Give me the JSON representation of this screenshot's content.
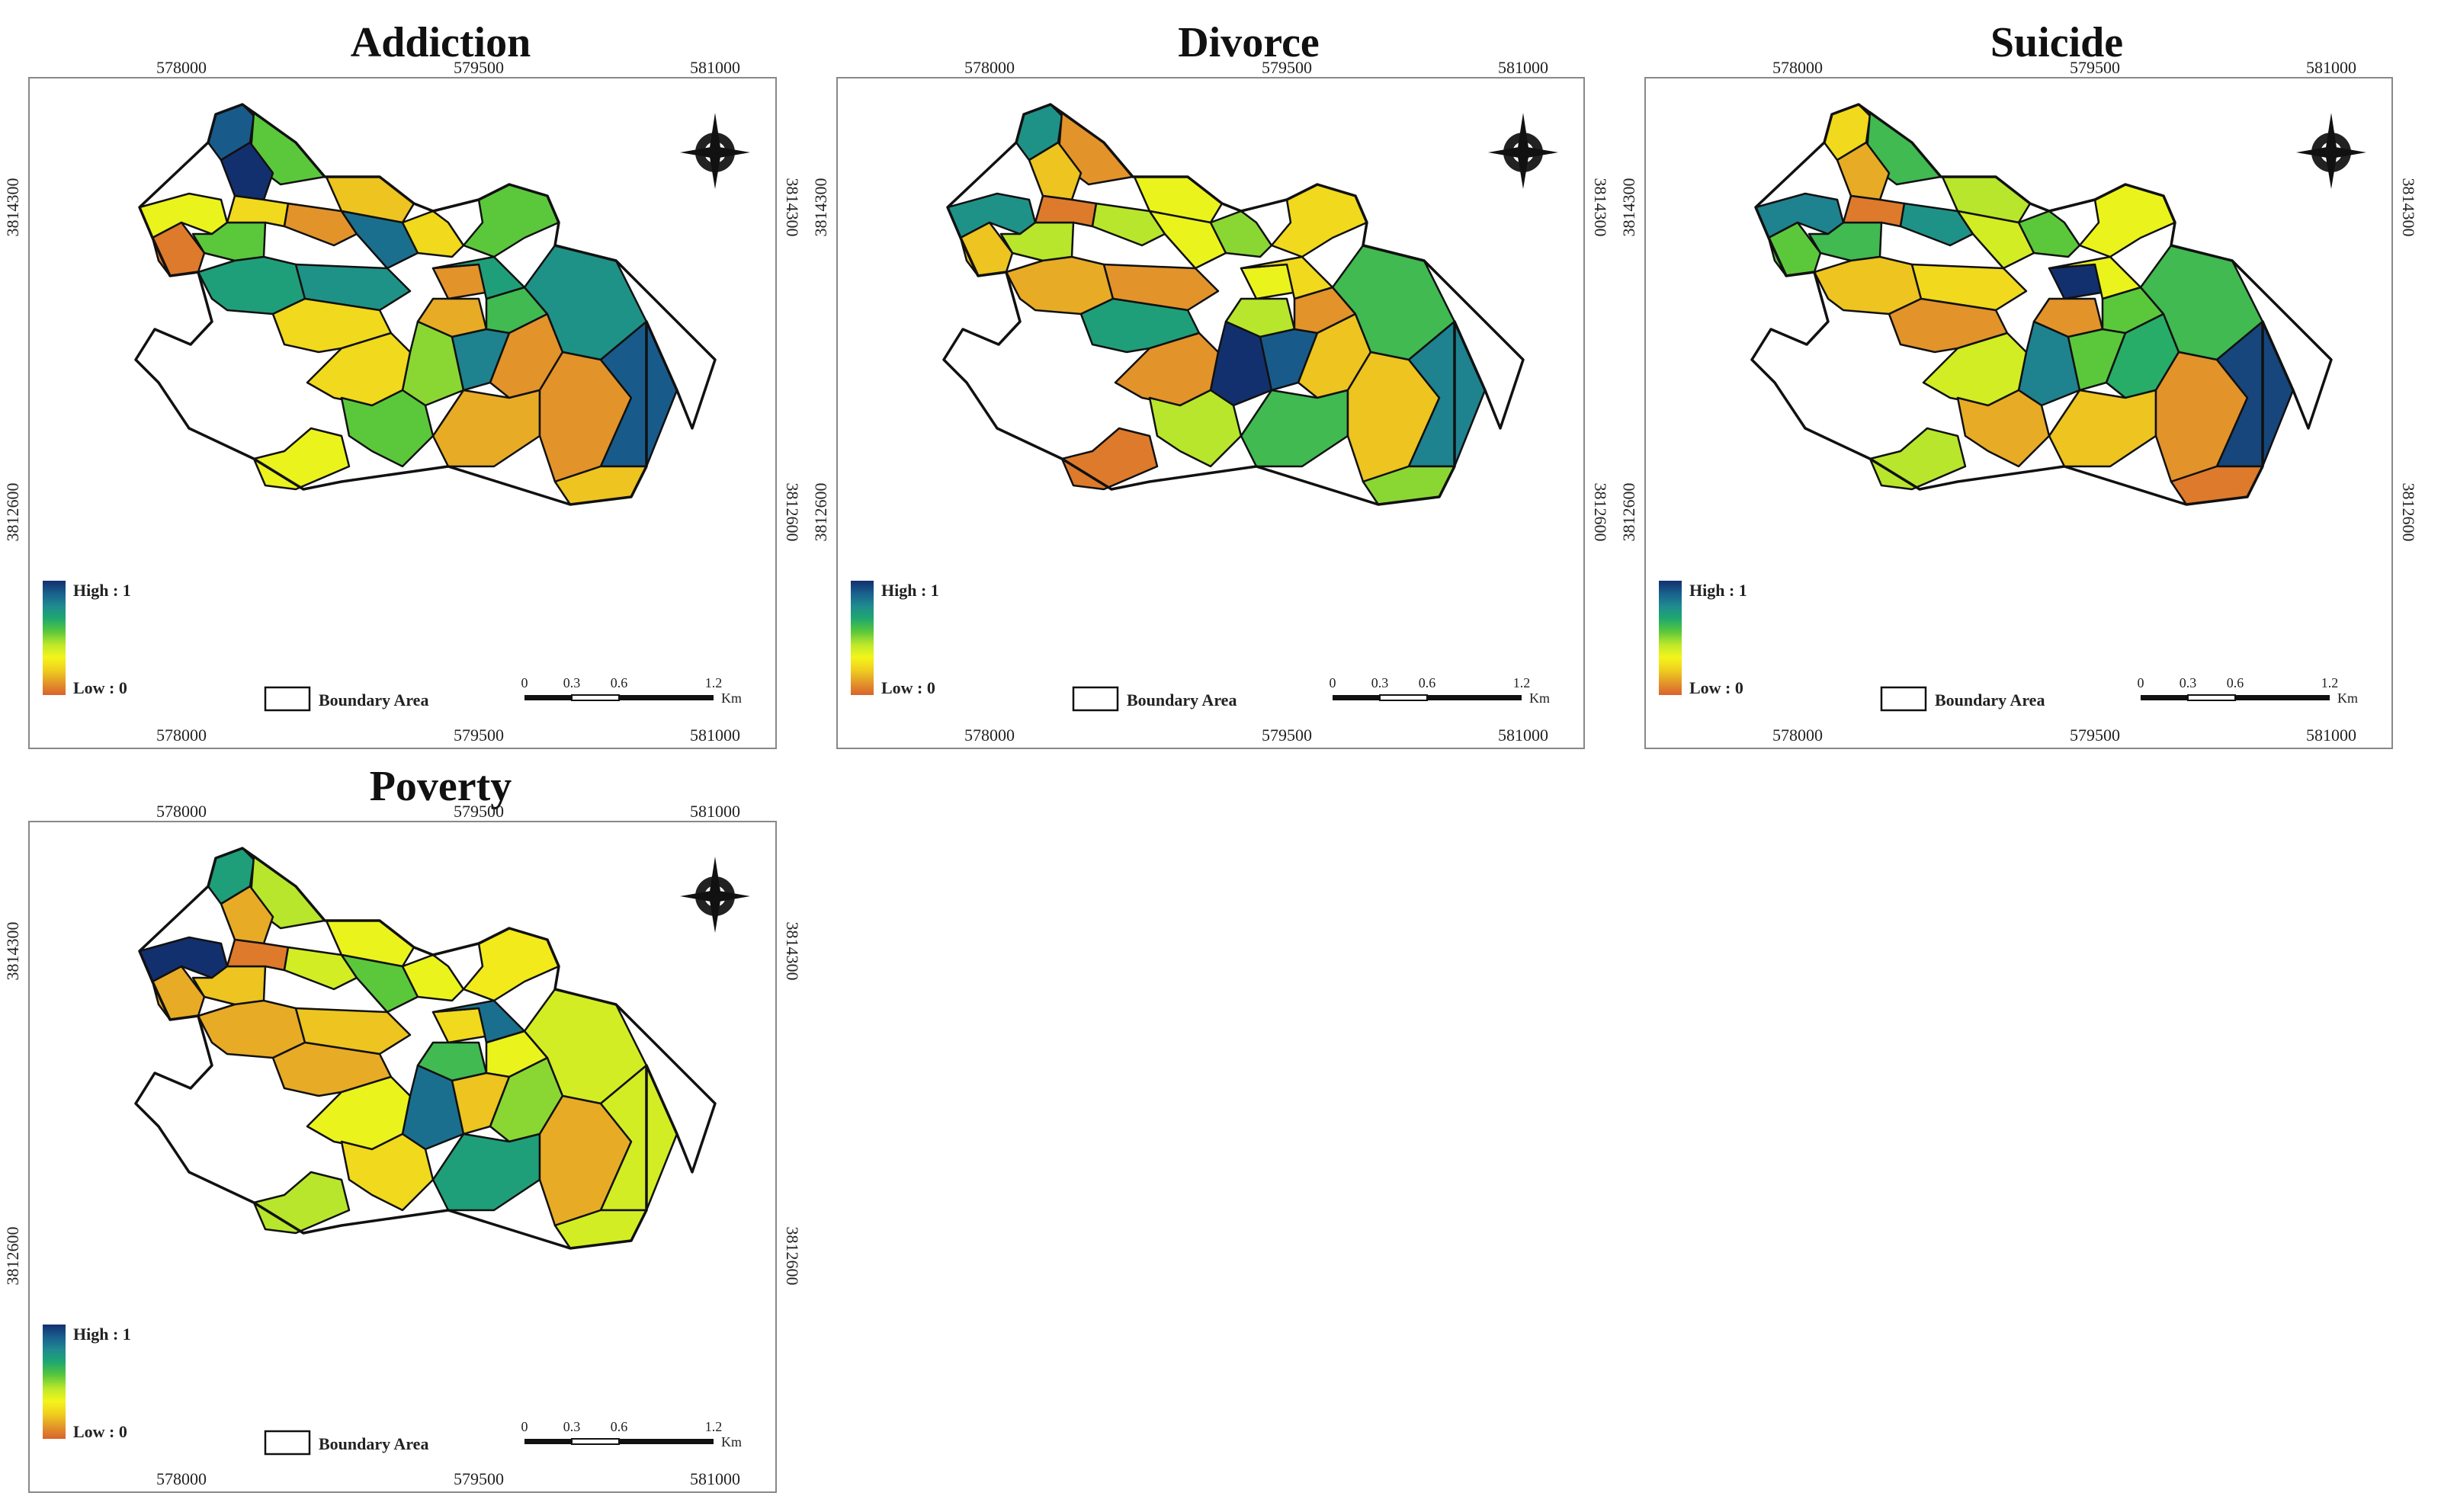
{
  "panels": [
    {
      "title": "Addiction",
      "zone_values": [
        0.9,
        0.55,
        1.0,
        0.2,
        0.35,
        0.55,
        0.05,
        0.25,
        0.1,
        0.7,
        0.85,
        0.25,
        0.55,
        0.1,
        0.75,
        0.15,
        0.25,
        0.6,
        0.5,
        0.8,
        0.1,
        0.25,
        0.7,
        0.55,
        0.75,
        0.15,
        0.1,
        0.35,
        0.9,
        0.2
      ]
    },
    {
      "title": "Divorce",
      "zone_values": [
        0.75,
        0.1,
        0.2,
        0.35,
        0.75,
        0.45,
        0.2,
        0.05,
        0.45,
        0.15,
        0.35,
        0.5,
        0.25,
        0.35,
        0.1,
        0.45,
        0.7,
        0.1,
        1.0,
        0.9,
        0.2,
        0.1,
        0.25,
        0.45,
        0.6,
        0.6,
        0.2,
        0.05,
        0.8,
        0.5
      ]
    },
    {
      "title": "Suicide",
      "zone_values": [
        0.25,
        0.6,
        0.15,
        0.45,
        0.8,
        0.6,
        0.55,
        0.05,
        0.75,
        0.2,
        0.4,
        0.55,
        0.35,
        1.0,
        0.25,
        0.1,
        0.1,
        0.55,
        0.8,
        0.55,
        0.65,
        0.4,
        0.35,
        0.15,
        0.6,
        0.2,
        0.1,
        0.45,
        0.95,
        0.05
      ]
    },
    {
      "title": "Poverty",
      "zone_values": [
        0.7,
        0.45,
        0.15,
        0.35,
        1.0,
        0.2,
        0.15,
        0.05,
        0.4,
        0.15,
        0.55,
        0.35,
        0.3,
        0.25,
        0.2,
        0.6,
        0.15,
        0.35,
        0.85,
        0.2,
        0.5,
        0.35,
        0.85,
        0.25,
        0.4,
        0.7,
        0.15,
        0.45,
        0.4,
        0.4
      ]
    }
  ],
  "x_ticks": [
    "578000",
    "579500",
    "581000"
  ],
  "y_ticks": [
    "3814300",
    "3812600"
  ],
  "legend": {
    "high": "High : 1",
    "low": "Low : 0",
    "boundary": "Boundary Area"
  },
  "scale_bar": {
    "labels": [
      "0",
      "0.3",
      "0.6",
      "1.2"
    ],
    "unit": "Km"
  },
  "colors": {
    "scale_stops": [
      "#d9622c",
      "#e3982a",
      "#f0cf1e",
      "#f3f51a",
      "#bde82b",
      "#56c63d",
      "#1fa86f",
      "#1f8a8f",
      "#19608e",
      "#13306e"
    ],
    "border": "#111111",
    "frame": "#888888"
  }
}
